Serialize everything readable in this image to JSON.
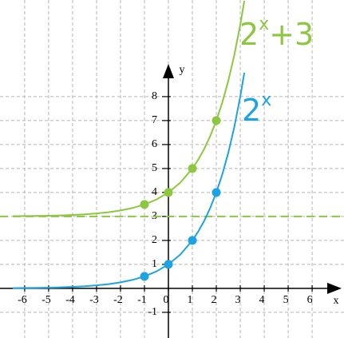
{
  "chart_data": {
    "type": "line",
    "xlabel": "x",
    "ylabel": "y",
    "xlim": [
      -7.03,
      7.33
    ],
    "ylim": [
      -2.07,
      12.03
    ],
    "xticks": [
      -6,
      -5,
      -4,
      -3,
      -2,
      -1,
      0,
      1,
      2,
      3,
      4,
      5,
      6
    ],
    "yticks": [
      -1,
      1,
      2,
      3,
      4,
      5,
      6,
      7,
      8
    ],
    "grid": true,
    "x": [
      -6.5,
      -6,
      -5.5,
      -5,
      -4.5,
      -4,
      -3.5,
      -3,
      -2.5,
      -2,
      -1.5,
      -1,
      -0.5,
      0,
      0.5,
      1,
      1.25,
      1.5,
      1.75,
      2,
      2.25,
      2.5,
      2.75,
      3,
      3.17
    ],
    "series": [
      {
        "color": "#8dc63f",
        "label": {
          "base": "2",
          "exponent": "x",
          "suffix": "+3"
        },
        "values": [
          3.011,
          3.016,
          3.022,
          3.031,
          3.044,
          3.063,
          3.088,
          3.125,
          3.177,
          3.25,
          3.354,
          3.5,
          3.707,
          4,
          4.414,
          5,
          5.378,
          5.828,
          6.364,
          7,
          7.757,
          8.657,
          9.727,
          11,
          12.0
        ],
        "asymptote": 3,
        "points": {
          "x": [
            -1,
            0,
            1,
            2
          ],
          "values": [
            3.5,
            4,
            5,
            7
          ]
        }
      },
      {
        "color": "#1ca3e4",
        "label": {
          "base": "2",
          "exponent": "x"
        },
        "values": [
          0.011,
          0.016,
          0.022,
          0.031,
          0.044,
          0.063,
          0.088,
          0.125,
          0.177,
          0.25,
          0.354,
          0.5,
          0.707,
          1,
          1.414,
          2,
          2.378,
          2.828,
          3.364,
          4,
          4.757,
          5.657,
          6.727,
          8,
          9.0
        ],
        "points": {
          "x": [
            -1,
            0,
            1,
            2
          ],
          "values": [
            0.5,
            1,
            2,
            4
          ]
        }
      }
    ]
  }
}
